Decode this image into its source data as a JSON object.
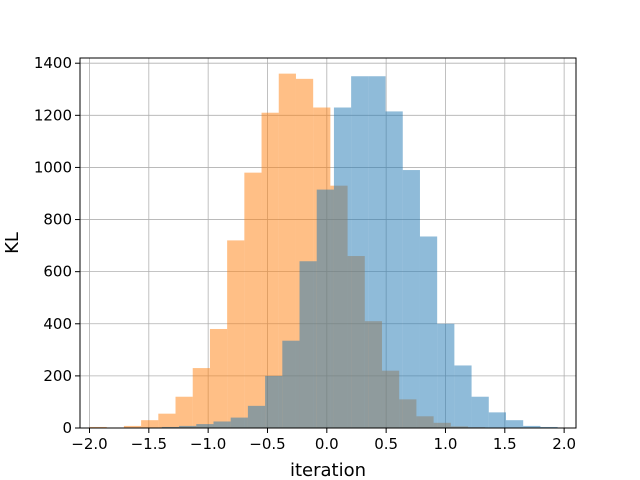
{
  "chart_data": {
    "type": "bar",
    "title": "",
    "xlabel": "iteration",
    "ylabel": "KL",
    "xlim": [
      -2.08,
      2.1
    ],
    "ylim": [
      0,
      1420
    ],
    "xticks": [
      -2.0,
      -1.5,
      -1.0,
      -0.5,
      0.0,
      0.5,
      1.0,
      1.5,
      2.0
    ],
    "xtick_labels": [
      "−2.0",
      "−1.5",
      "−1.0",
      "−0.5",
      "0.0",
      "0.5",
      "1.0",
      "1.5",
      "2.0"
    ],
    "yticks": [
      0,
      200,
      400,
      600,
      800,
      1000,
      1200,
      1400
    ],
    "ytick_labels": [
      "0",
      "200",
      "400",
      "600",
      "800",
      "1000",
      "1200",
      "1400"
    ],
    "grid": true,
    "legend": "none",
    "series": [
      {
        "color": "#ff7f0e",
        "bin_edges": [
          -2.0,
          -1.855,
          -1.71,
          -1.565,
          -1.42,
          -1.275,
          -1.13,
          -0.985,
          -0.84,
          -0.695,
          -0.55,
          -0.405,
          -0.26,
          -0.115,
          0.03,
          0.175,
          0.32,
          0.465,
          0.61,
          0.755,
          0.9,
          1.045,
          1.19,
          1.335,
          1.48
        ],
        "values": [
          4,
          2,
          8,
          30,
          55,
          120,
          230,
          380,
          720,
          980,
          1210,
          1360,
          1340,
          1230,
          930,
          660,
          410,
          220,
          110,
          45,
          20,
          6,
          3,
          1
        ]
      },
      {
        "color": "#1f77b4",
        "bin_edges": [
          -1.68,
          -1.535,
          -1.39,
          -1.245,
          -1.1,
          -0.955,
          -0.81,
          -0.665,
          -0.52,
          -0.375,
          -0.23,
          -0.085,
          0.06,
          0.205,
          0.35,
          0.495,
          0.64,
          0.785,
          0.93,
          1.075,
          1.22,
          1.365,
          1.51,
          1.655,
          1.8,
          1.945
        ],
        "values": [
          1,
          2,
          4,
          8,
          15,
          25,
          40,
          85,
          200,
          335,
          640,
          915,
          1230,
          1350,
          1350,
          1215,
          990,
          735,
          400,
          240,
          120,
          60,
          30,
          8,
          4
        ]
      }
    ]
  }
}
